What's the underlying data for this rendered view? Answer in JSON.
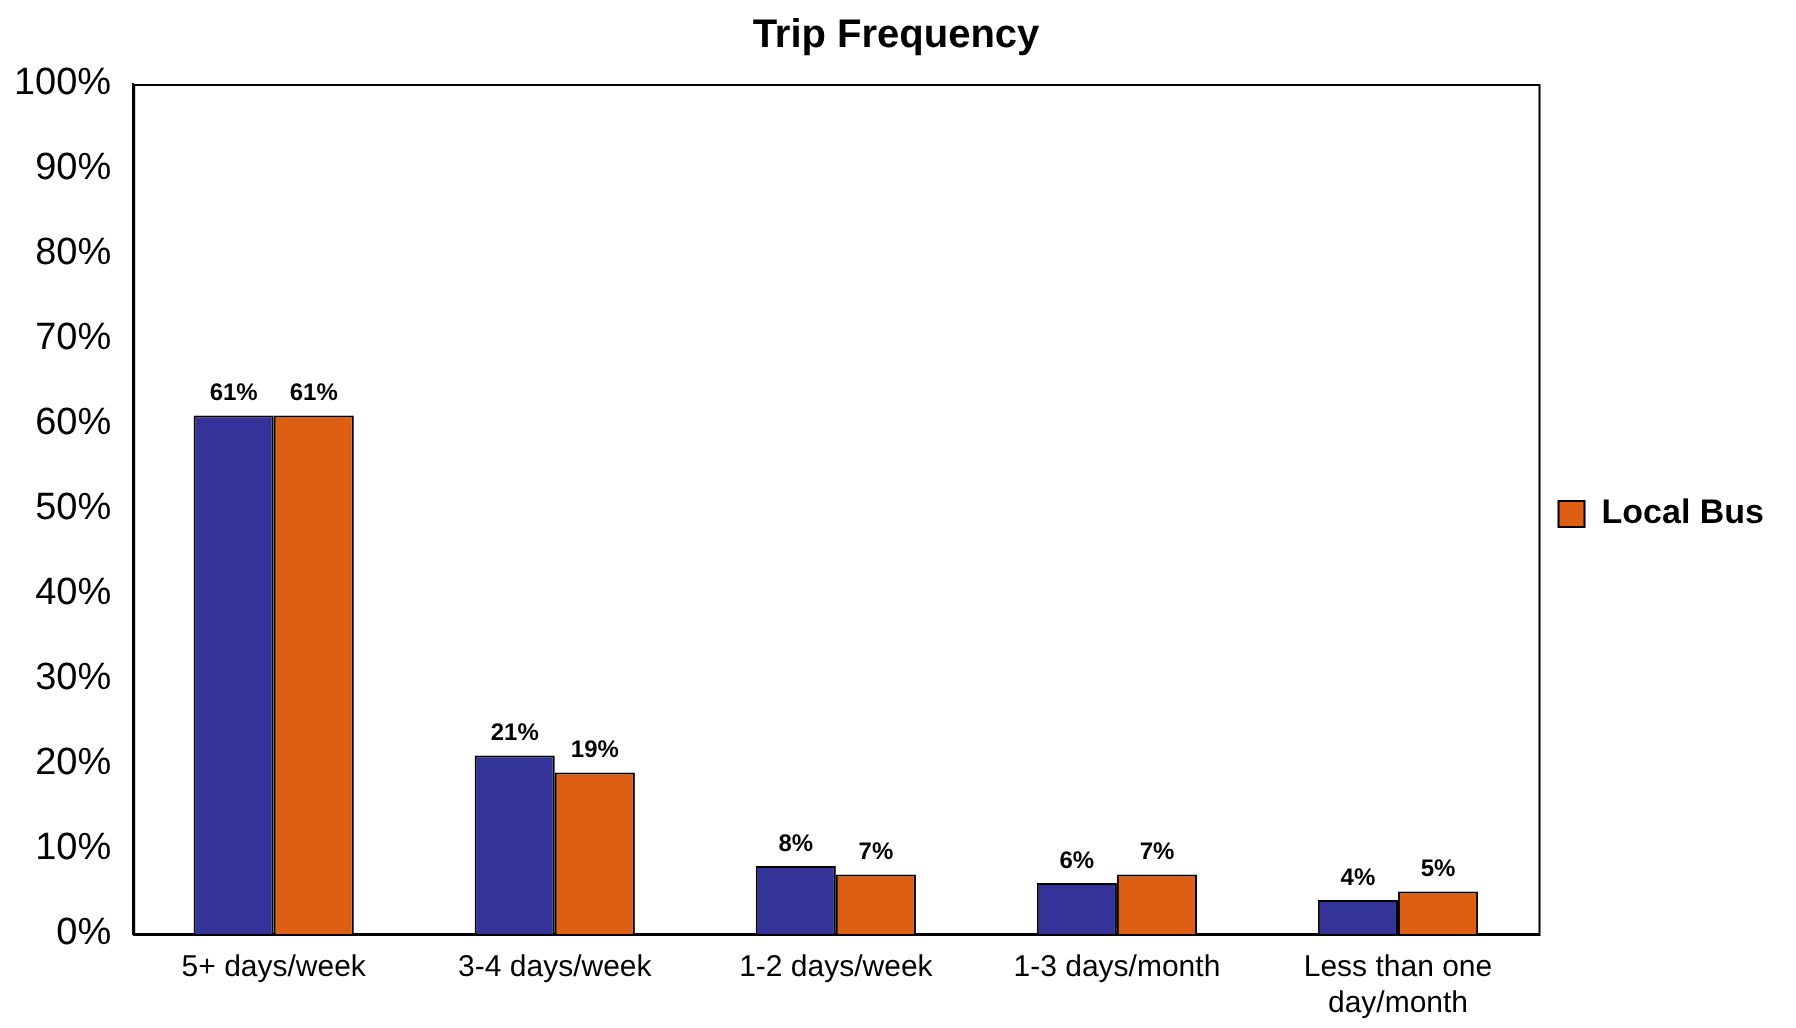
{
  "chart_data": {
    "type": "bar",
    "title": "Trip Frequency",
    "categories": [
      "5+ days/week",
      "3-4 days/week",
      "1-2 days/week",
      "1-3 days/month",
      "Less than one day/month"
    ],
    "series": [
      {
        "color": "#333399",
        "values": [
          61,
          21,
          8,
          6,
          4
        ],
        "value_labels": [
          "61%",
          "21%",
          "8%",
          "6%",
          "4%"
        ]
      },
      {
        "name": "Local Bus",
        "color": "#dd5f13",
        "values": [
          61,
          19,
          7,
          7,
          5
        ],
        "value_labels": [
          "61%",
          "19%",
          "7%",
          "7%",
          "5%"
        ]
      }
    ],
    "ylim": [
      0,
      100
    ],
    "yticks": [
      {
        "value": 0,
        "label": "0%"
      },
      {
        "value": 10,
        "label": "10%"
      },
      {
        "value": 20,
        "label": "20%"
      },
      {
        "value": 30,
        "label": "30%"
      },
      {
        "value": 40,
        "label": "40%"
      },
      {
        "value": 50,
        "label": "50%"
      },
      {
        "value": 60,
        "label": "60%"
      },
      {
        "value": 70,
        "label": "70%"
      },
      {
        "value": 80,
        "label": "80%"
      },
      {
        "value": 90,
        "label": "90%"
      },
      {
        "value": 100,
        "label": "100%"
      }
    ],
    "grid": false,
    "legend": "right"
  }
}
